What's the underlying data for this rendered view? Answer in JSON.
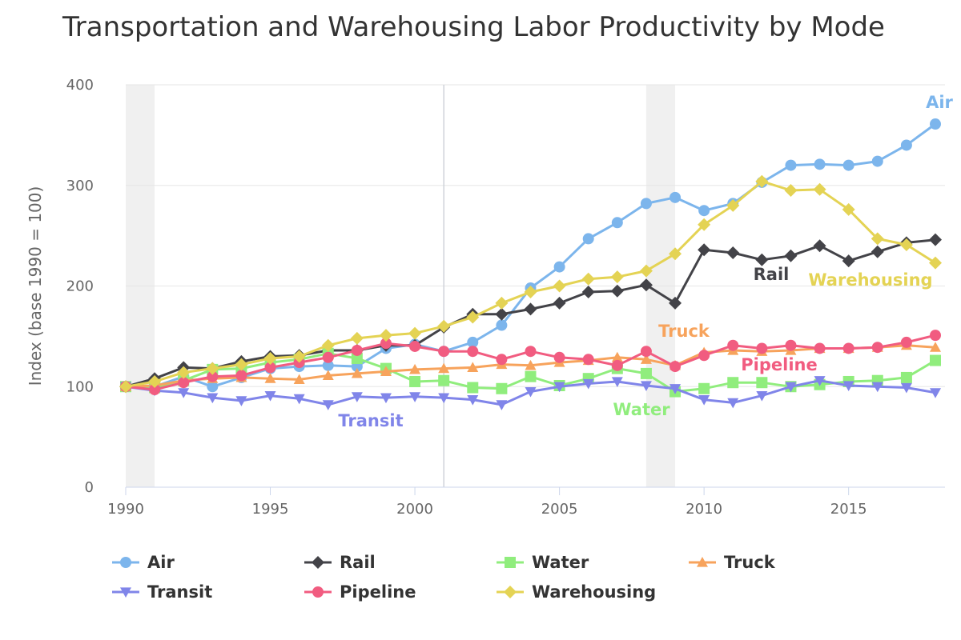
{
  "chart_data": {
    "type": "line",
    "title": "Transportation and Warehousing Labor Productivity by Mode",
    "ylabel": "Index (base 1990 = 100)",
    "xlabel": "",
    "ylim": [
      0,
      400
    ],
    "xlim": [
      1990,
      2018
    ],
    "x_ticks": [
      1990,
      1995,
      2000,
      2005,
      2010,
      2015
    ],
    "y_ticks": [
      0,
      100,
      200,
      300,
      400
    ],
    "recession_bands": [
      [
        1990,
        1991
      ],
      [
        2008,
        2009
      ]
    ],
    "vertical_marker": 2001,
    "x": [
      1990,
      1991,
      1992,
      1993,
      1994,
      1995,
      1996,
      1997,
      1998,
      1999,
      2000,
      2001,
      2002,
      2003,
      2004,
      2005,
      2006,
      2007,
      2008,
      2009,
      2010,
      2011,
      2012,
      2013,
      2014,
      2015,
      2016,
      2017,
      2018
    ],
    "series": [
      {
        "name": "Air",
        "color": "#7cb5ec",
        "marker": "circle",
        "label": "Air",
        "values": [
          100,
          100,
          110,
          100,
          109,
          118,
          120,
          121,
          120,
          138,
          142,
          135,
          144,
          161,
          198,
          219,
          247,
          263,
          282,
          288,
          275,
          282,
          303,
          320,
          321,
          320,
          324,
          340,
          361
        ]
      },
      {
        "name": "Rail",
        "color": "#434348",
        "marker": "diamond",
        "label": "Rail",
        "values": [
          100,
          108,
          119,
          118,
          125,
          130,
          131,
          136,
          136,
          141,
          141,
          159,
          172,
          172,
          177,
          183,
          194,
          195,
          201,
          183,
          236,
          233,
          226,
          230,
          240,
          225,
          234,
          243,
          246
        ]
      },
      {
        "name": "Water",
        "color": "#90ed7d",
        "marker": "square",
        "label": "Water",
        "values": [
          100,
          99,
          106,
          117,
          118,
          124,
          127,
          133,
          128,
          118,
          105,
          106,
          99,
          98,
          110,
          101,
          108,
          118,
          113,
          95,
          98,
          104,
          104,
          100,
          102,
          105,
          106,
          109,
          126
        ]
      },
      {
        "name": "Truck",
        "color": "#f7a35c",
        "marker": "triangle",
        "label": "Truck",
        "values": [
          100,
          101,
          106,
          108,
          109,
          108,
          107,
          111,
          113,
          115,
          117,
          118,
          119,
          122,
          121,
          124,
          126,
          129,
          127,
          121,
          134,
          136,
          135,
          136,
          138,
          138,
          139,
          141,
          139
        ]
      },
      {
        "name": "Transit",
        "color": "#8085e9",
        "marker": "triangle-down",
        "label": "Transit",
        "values": [
          100,
          96,
          94,
          89,
          86,
          91,
          88,
          82,
          90,
          89,
          90,
          89,
          87,
          82,
          95,
          100,
          103,
          105,
          101,
          98,
          87,
          84,
          91,
          100,
          106,
          101,
          100,
          99,
          94
        ]
      },
      {
        "name": "Pipeline",
        "color": "#f15c80",
        "marker": "circle",
        "label": "Pipeline",
        "values": [
          100,
          97,
          104,
          110,
          111,
          119,
          124,
          129,
          136,
          143,
          140,
          135,
          135,
          127,
          135,
          129,
          127,
          121,
          135,
          120,
          131,
          141,
          138,
          141,
          138,
          138,
          139,
          144,
          151
        ]
      },
      {
        "name": "Warehousing",
        "color": "#e4d354",
        "marker": "diamond",
        "label": "Warehousing",
        "values": [
          100,
          105,
          114,
          118,
          122,
          128,
          130,
          141,
          148,
          151,
          153,
          160,
          169,
          183,
          194,
          200,
          207,
          209,
          215,
          232,
          261,
          280,
          304,
          295,
          296,
          276,
          247,
          241,
          223
        ]
      }
    ],
    "legend": {
      "placement": "bottom",
      "rows": [
        [
          "Air",
          "Rail",
          "Water",
          "Truck"
        ],
        [
          "Transit",
          "Pipeline",
          "Warehousing"
        ]
      ]
    }
  }
}
